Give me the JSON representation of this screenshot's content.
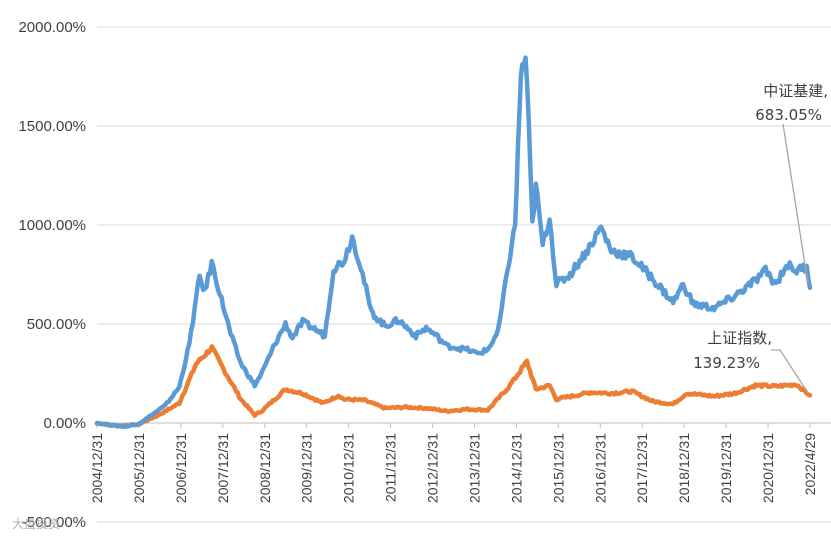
{
  "chart_data": {
    "type": "line",
    "ylim": [
      -500,
      2000
    ],
    "y_ticks": [
      "2000.00%",
      "1500.00%",
      "1000.00%",
      "500.00%",
      "0.00%",
      "-500.00%"
    ],
    "y_tick_values": [
      2000,
      1500,
      1000,
      500,
      0,
      -500
    ],
    "x_ticks": [
      "2004/12/31",
      "2005/12/31",
      "2006/12/31",
      "2007/12/31",
      "2008/12/31",
      "2009/12/31",
      "2010/12/31",
      "2011/12/31",
      "2012/12/31",
      "2013/12/31",
      "2014/12/31",
      "2015/12/31",
      "2016/12/31",
      "2017/12/31",
      "2018/12/31",
      "2019/12/31",
      "2020/12/31",
      "2022/4/29"
    ],
    "grid": true,
    "series": [
      {
        "name": "中证基建",
        "color": "#5B9BD5",
        "points": [
          [
            "2004-12-31",
            0
          ],
          [
            "2005-04-30",
            -10
          ],
          [
            "2005-08-31",
            -18
          ],
          [
            "2005-12-31",
            -5
          ],
          [
            "2006-04-30",
            40
          ],
          [
            "2006-08-31",
            90
          ],
          [
            "2006-12-31",
            180
          ],
          [
            "2007-03-31",
            400
          ],
          [
            "2007-06-30",
            740
          ],
          [
            "2007-08-15",
            660
          ],
          [
            "2007-10-15",
            810
          ],
          [
            "2007-12-15",
            680
          ],
          [
            "2008-03-31",
            450
          ],
          [
            "2008-06-30",
            300
          ],
          [
            "2008-10-31",
            190
          ],
          [
            "2008-12-31",
            250
          ],
          [
            "2009-04-30",
            400
          ],
          [
            "2009-07-31",
            500
          ],
          [
            "2009-09-30",
            430
          ],
          [
            "2009-12-31",
            510
          ],
          [
            "2010-04-30",
            470
          ],
          [
            "2010-07-15",
            440
          ],
          [
            "2010-09-30",
            780
          ],
          [
            "2010-12-31",
            820
          ],
          [
            "2011-03-15",
            940
          ],
          [
            "2011-05-31",
            790
          ],
          [
            "2011-08-31",
            560
          ],
          [
            "2011-12-31",
            490
          ],
          [
            "2012-04-30",
            520
          ],
          [
            "2012-09-30",
            440
          ],
          [
            "2012-12-31",
            480
          ],
          [
            "2013-03-31",
            440
          ],
          [
            "2013-06-30",
            390
          ],
          [
            "2013-09-30",
            380
          ],
          [
            "2013-12-31",
            370
          ],
          [
            "2014-03-31",
            350
          ],
          [
            "2014-06-30",
            370
          ],
          [
            "2014-09-30",
            460
          ],
          [
            "2014-12-31",
            800
          ],
          [
            "2015-02-28",
            1000
          ],
          [
            "2015-04-20",
            1760
          ],
          [
            "2015-05-31",
            1850
          ],
          [
            "2015-06-30",
            1480
          ],
          [
            "2015-07-31",
            1000
          ],
          [
            "2015-08-31",
            1200
          ],
          [
            "2015-10-31",
            900
          ],
          [
            "2015-12-31",
            1040
          ],
          [
            "2016-02-29",
            700
          ],
          [
            "2016-06-30",
            750
          ],
          [
            "2016-12-31",
            900
          ],
          [
            "2017-03-31",
            990
          ],
          [
            "2017-06-30",
            870
          ],
          [
            "2017-12-31",
            840
          ],
          [
            "2018-06-30",
            730
          ],
          [
            "2018-12-31",
            610
          ],
          [
            "2019-03-31",
            700
          ],
          [
            "2019-06-30",
            600
          ],
          [
            "2019-12-31",
            580
          ],
          [
            "2020-06-30",
            640
          ],
          [
            "2020-12-31",
            720
          ],
          [
            "2021-03-31",
            770
          ],
          [
            "2021-06-30",
            700
          ],
          [
            "2021-09-30",
            800
          ],
          [
            "2021-12-31",
            770
          ],
          [
            "2022-03-31",
            790
          ],
          [
            "2022-04-29",
            683.05
          ]
        ]
      },
      {
        "name": "上证指数",
        "color": "#ED7D31",
        "points": [
          [
            "2004-12-31",
            0
          ],
          [
            "2005-06-30",
            -15
          ],
          [
            "2005-12-31",
            -8
          ],
          [
            "2006-06-30",
            40
          ],
          [
            "2006-12-31",
            100
          ],
          [
            "2007-05-31",
            300
          ],
          [
            "2007-10-16",
            380
          ],
          [
            "2007-12-31",
            300
          ],
          [
            "2008-06-30",
            120
          ],
          [
            "2008-10-31",
            40
          ],
          [
            "2008-12-31",
            60
          ],
          [
            "2009-07-31",
            170
          ],
          [
            "2009-12-31",
            150
          ],
          [
            "2010-06-30",
            100
          ],
          [
            "2010-11-15",
            140
          ],
          [
            "2010-12-31",
            120
          ],
          [
            "2011-06-30",
            115
          ],
          [
            "2011-12-31",
            75
          ],
          [
            "2012-06-30",
            80
          ],
          [
            "2012-12-31",
            75
          ],
          [
            "2013-06-30",
            60
          ],
          [
            "2013-12-31",
            70
          ],
          [
            "2014-06-30",
            65
          ],
          [
            "2014-12-31",
            180
          ],
          [
            "2015-06-12",
            310
          ],
          [
            "2015-08-31",
            170
          ],
          [
            "2015-12-31",
            190
          ],
          [
            "2016-02-29",
            120
          ],
          [
            "2016-12-31",
            155
          ],
          [
            "2017-06-30",
            150
          ],
          [
            "2017-12-31",
            160
          ],
          [
            "2018-06-30",
            110
          ],
          [
            "2018-12-31",
            95
          ],
          [
            "2019-04-30",
            150
          ],
          [
            "2019-12-31",
            135
          ],
          [
            "2020-06-30",
            150
          ],
          [
            "2020-12-31",
            190
          ],
          [
            "2021-06-30",
            185
          ],
          [
            "2021-12-31",
            195
          ],
          [
            "2022-04-29",
            139.23
          ]
        ]
      }
    ],
    "annotations": [
      {
        "line1": "中证基建,",
        "line2": "683.05%"
      },
      {
        "line1": "上证指数,",
        "line2": "139.23%"
      }
    ]
  },
  "watermark": "大盘投资"
}
